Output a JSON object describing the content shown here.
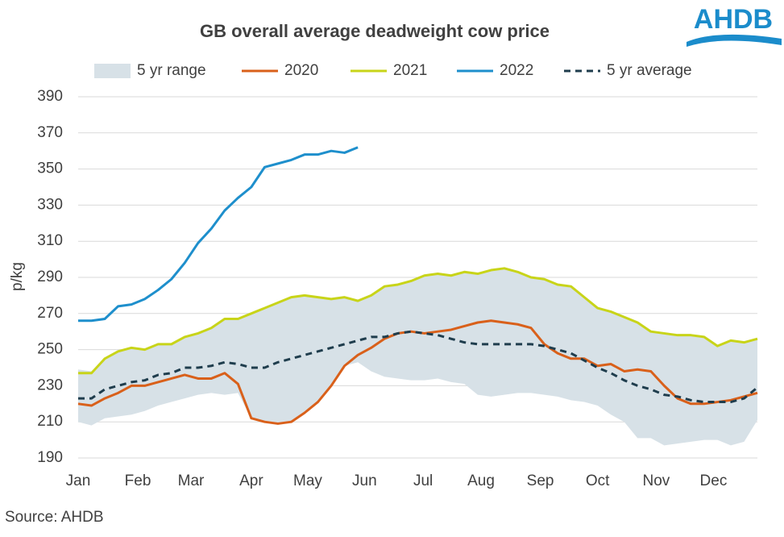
{
  "chart_data": {
    "type": "line",
    "title": "GB overall average deadweight cow price",
    "y_label": "p/kg",
    "source": "Source: AHDB",
    "logo": "AHDB",
    "x": [
      1,
      2,
      3,
      4,
      5,
      6,
      7,
      8,
      9,
      10,
      11,
      12,
      13,
      14,
      15,
      16,
      17,
      18,
      19,
      20,
      21,
      22,
      23,
      24,
      25,
      26,
      27,
      28,
      29,
      30,
      31,
      32,
      33,
      34,
      35,
      36,
      37,
      38,
      39,
      40,
      41,
      42,
      43,
      44,
      45,
      46,
      47,
      48,
      49,
      50,
      51,
      52
    ],
    "xlim": [
      1,
      52
    ],
    "xticks": [
      {
        "value": 1,
        "label": "Jan"
      },
      {
        "value": 5.48,
        "label": "Feb"
      },
      {
        "value": 9.47,
        "label": "Mar"
      },
      {
        "value": 14,
        "label": "Apr"
      },
      {
        "value": 18.24,
        "label": "May"
      },
      {
        "value": 22.5,
        "label": "Jun"
      },
      {
        "value": 26.9,
        "label": "Jul"
      },
      {
        "value": 31.25,
        "label": "Aug"
      },
      {
        "value": 35.7,
        "label": "Sep"
      },
      {
        "value": 40,
        "label": "Oct"
      },
      {
        "value": 44.4,
        "label": "Nov"
      },
      {
        "value": 48.7,
        "label": "Dec"
      }
    ],
    "ylim": [
      190,
      390
    ],
    "yticks": [
      190,
      210,
      230,
      250,
      270,
      290,
      310,
      330,
      350,
      370,
      390
    ],
    "grid": true,
    "legend": "top",
    "band": {
      "name": "5 yr range",
      "color": "#d7e1e7",
      "low": [
        210,
        208,
        212,
        213,
        214,
        216,
        219,
        221,
        223,
        225,
        226,
        225,
        226,
        212,
        210,
        209,
        210,
        215,
        221,
        230,
        241,
        243,
        238,
        235,
        234,
        233,
        233,
        234,
        232,
        231,
        225,
        224,
        225,
        226,
        226,
        225,
        224,
        222,
        221,
        219,
        214,
        210,
        201,
        201,
        197,
        198,
        199,
        200,
        200,
        197,
        199,
        211
      ],
      "high": [
        239,
        238,
        245,
        249,
        251,
        250,
        253,
        253,
        257,
        259,
        262,
        267,
        267,
        270,
        273,
        276,
        279,
        280,
        279,
        278,
        279,
        277,
        280,
        285,
        286,
        288,
        291,
        292,
        291,
        293,
        292,
        294,
        295,
        293,
        290,
        289,
        286,
        285,
        279,
        273,
        271,
        268,
        265,
        260,
        259,
        258,
        258,
        257,
        252,
        255,
        254,
        256
      ]
    },
    "series": [
      {
        "name": "2020",
        "color": "#d9601a",
        "dash": false,
        "values": [
          220,
          219,
          223,
          226,
          230,
          230,
          232,
          234,
          236,
          234,
          234,
          237,
          231,
          212,
          210,
          209,
          210,
          215,
          221,
          230,
          241,
          247,
          251,
          256,
          259,
          260,
          259,
          260,
          261,
          263,
          265,
          266,
          265,
          264,
          262,
          253,
          248,
          245,
          245,
          241,
          242,
          238,
          239,
          238,
          230,
          223,
          220,
          220,
          221,
          222,
          224,
          226
        ]
      },
      {
        "name": "2021",
        "color": "#c8d419",
        "dash": false,
        "values": [
          237,
          237,
          245,
          249,
          251,
          250,
          253,
          253,
          257,
          259,
          262,
          267,
          267,
          270,
          273,
          276,
          279,
          280,
          279,
          278,
          279,
          277,
          280,
          285,
          286,
          288,
          291,
          292,
          291,
          293,
          292,
          294,
          295,
          293,
          290,
          289,
          286,
          285,
          279,
          273,
          271,
          268,
          265,
          260,
          259,
          258,
          258,
          257,
          252,
          255,
          254,
          256
        ]
      },
      {
        "name": "2022",
        "color": "#1e8fcc",
        "dash": false,
        "values": [
          266,
          266,
          267,
          274,
          275,
          278,
          283,
          289,
          298,
          309,
          317,
          327,
          334,
          340,
          351,
          353,
          355,
          358,
          358,
          360,
          359,
          362,
          null,
          null,
          null,
          null,
          null,
          null,
          null,
          null,
          null,
          null,
          null,
          null,
          null,
          null,
          null,
          null,
          null,
          null,
          null,
          null,
          null,
          null,
          null,
          null,
          null,
          null,
          null,
          null,
          null,
          null
        ]
      },
      {
        "name": "5 yr average",
        "color": "#1f3d4d",
        "dash": true,
        "values": [
          223,
          223,
          228,
          230,
          232,
          233,
          236,
          237,
          240,
          240,
          241,
          243,
          242,
          240,
          240,
          243,
          245,
          247,
          249,
          251,
          253,
          255,
          257,
          257,
          259,
          260,
          259,
          258,
          256,
          254,
          253,
          253,
          253,
          253,
          253,
          252,
          250,
          248,
          244,
          240,
          237,
          233,
          230,
          228,
          225,
          224,
          222,
          221,
          221,
          221,
          223,
          229
        ]
      }
    ]
  }
}
